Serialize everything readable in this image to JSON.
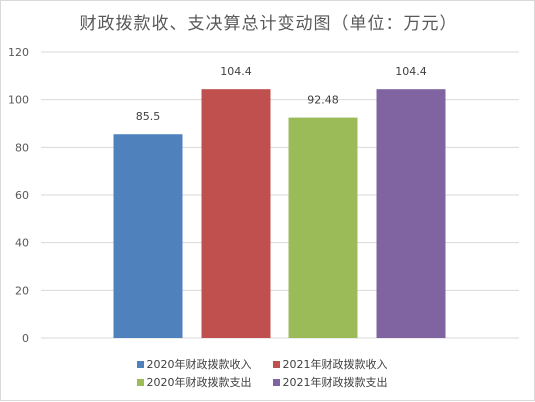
{
  "chart_data": {
    "type": "bar",
    "title": "财政拨款收、支决算总计变动图（单位：万元）",
    "categories": [
      "2020年财政拨款收入",
      "2021年财政拨款收入",
      "2020年财政拨款支出",
      "2021年财政拨款支出"
    ],
    "values": [
      85.5,
      104.4,
      92.48,
      104.4
    ],
    "value_labels": [
      "85.5",
      "104.4",
      "92.48",
      "104.4"
    ],
    "colors": [
      "#4f81bd",
      "#c0504d",
      "#9bbb59",
      "#8064a2"
    ],
    "ylim": [
      0,
      120
    ],
    "yticks": [
      "0",
      "20",
      "40",
      "60",
      "80",
      "100",
      "120"
    ],
    "xlabel": "",
    "ylabel": "",
    "grid": true,
    "legend_position": "bottom"
  }
}
